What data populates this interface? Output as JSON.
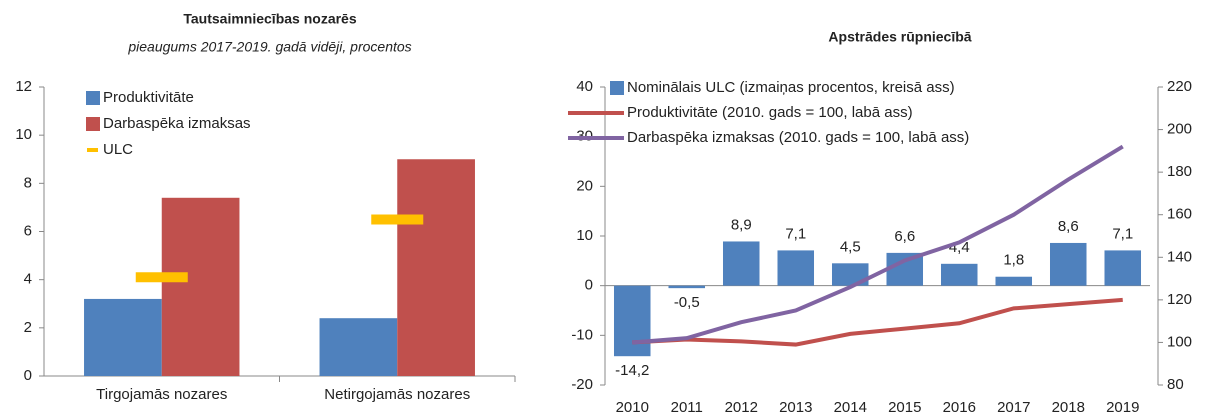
{
  "chart_data": [
    {
      "type": "bar",
      "title": "Tautsaimniecības nozarēs",
      "subtitle": "pieaugums 2017-2019. gadā vidēji, procentos",
      "categories": [
        "Tirgojamās nozares",
        "Netirgojamās nozares"
      ],
      "series": [
        {
          "name": "Produktivitāte",
          "color": "#4f81bd",
          "kind": "bar",
          "values": [
            3.2,
            2.4
          ]
        },
        {
          "name": "Darbaspēka izmaksas",
          "color": "#c0504d",
          "kind": "bar",
          "values": [
            7.4,
            9.0
          ]
        },
        {
          "name": "ULC",
          "color": "#ffc000",
          "kind": "marker",
          "values": [
            4.1,
            6.5
          ]
        }
      ],
      "ylim": [
        0,
        12
      ],
      "yticks": [
        0,
        2,
        4,
        6,
        8,
        10,
        12
      ],
      "grid": false
    },
    {
      "type": "bar",
      "title": "Apstrādes rūpniecībā",
      "categories": [
        "2010",
        "2011",
        "2012",
        "2013",
        "2014",
        "2015",
        "2016",
        "2017",
        "2018",
        "2019"
      ],
      "series": [
        {
          "name": "Nominālais ULC (izmaiņas procentos, kreisā ass)",
          "color": "#4f81bd",
          "kind": "bar",
          "values": [
            -14.2,
            -0.5,
            8.9,
            7.1,
            4.5,
            6.6,
            4.4,
            1.8,
            8.6,
            7.1
          ],
          "value_labels": [
            "-14,2",
            "-0,5",
            "8,9",
            "7,1",
            "4,5",
            "6,6",
            "4,4",
            "1,8",
            "8,6",
            "7,1"
          ]
        },
        {
          "name": "Produktivitāte (2010. gads = 100, labā ass)",
          "color": "#c0504d",
          "kind": "line",
          "axis": "y2",
          "values": [
            100,
            101.4,
            100.5,
            99,
            104,
            106.5,
            109,
            116,
            118,
            120
          ]
        },
        {
          "name": "Darbaspēka izmaksas (2010. gads = 100, labā ass)",
          "color": "#8064a2",
          "kind": "line",
          "axis": "y2",
          "values": [
            100,
            102,
            109.5,
            115,
            126,
            138.5,
            147,
            160,
            176.5,
            192
          ]
        }
      ],
      "ylim": [
        -20,
        40
      ],
      "yticks": [
        -20,
        -10,
        0,
        10,
        20,
        30,
        40
      ],
      "y2lim": [
        80,
        220
      ],
      "y2ticks": [
        80,
        100,
        120,
        140,
        160,
        180,
        200,
        220
      ],
      "grid": false
    }
  ]
}
